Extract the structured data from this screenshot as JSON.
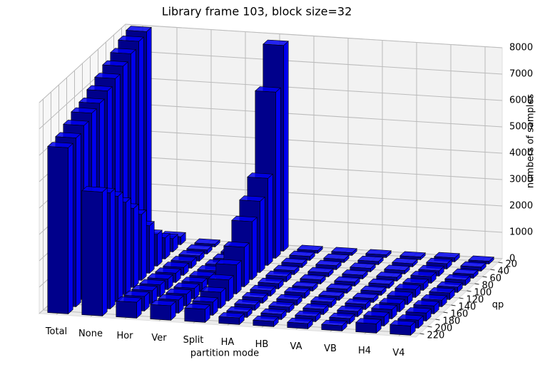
{
  "chart_data": {
    "type": "bar3d",
    "title": "Library frame 103, block size=32",
    "xlabel": "partition mode",
    "ylabel": "qp",
    "zlabel": "numbers of samples",
    "categories": [
      "Total",
      "None",
      "Hor",
      "Ver",
      "Split",
      "HA",
      "HB",
      "VA",
      "VB",
      "H4",
      "V4"
    ],
    "y": [
      20,
      40,
      60,
      80,
      100,
      120,
      140,
      160,
      180,
      200,
      220
    ],
    "ylim": [
      10,
      230
    ],
    "yticks": [
      20,
      40,
      60,
      80,
      100,
      120,
      140,
      160,
      180,
      200,
      220
    ],
    "zlim": [
      0,
      8000
    ],
    "zticks": [
      0,
      1000,
      2000,
      3000,
      4000,
      5000,
      6000,
      7000,
      8000
    ],
    "color": "#0000ee",
    "grid": true,
    "values": [
      [
        8000,
        300,
        100,
        100,
        7800,
        100,
        100,
        100,
        100,
        150,
        100
      ],
      [
        7900,
        500,
        150,
        120,
        6300,
        150,
        120,
        120,
        120,
        200,
        150
      ],
      [
        7700,
        800,
        200,
        150,
        3300,
        150,
        150,
        130,
        130,
        200,
        150
      ],
      [
        7500,
        1200,
        250,
        200,
        2700,
        150,
        150,
        140,
        140,
        250,
        200
      ],
      [
        7300,
        1800,
        300,
        250,
        2200,
        200,
        150,
        150,
        150,
        250,
        200
      ],
      [
        7100,
        2500,
        350,
        300,
        1500,
        200,
        150,
        150,
        150,
        300,
        250
      ],
      [
        6900,
        3000,
        400,
        350,
        1100,
        200,
        200,
        150,
        150,
        300,
        250
      ],
      [
        6800,
        3500,
        450,
        400,
        800,
        200,
        200,
        200,
        200,
        300,
        300
      ],
      [
        6600,
        4000,
        500,
        450,
        600,
        200,
        200,
        200,
        200,
        350,
        300
      ],
      [
        6400,
        4400,
        550,
        500,
        500,
        200,
        200,
        200,
        200,
        350,
        300
      ],
      [
        6300,
        4700,
        600,
        550,
        500,
        250,
        200,
        200,
        200,
        350,
        350
      ]
    ]
  }
}
